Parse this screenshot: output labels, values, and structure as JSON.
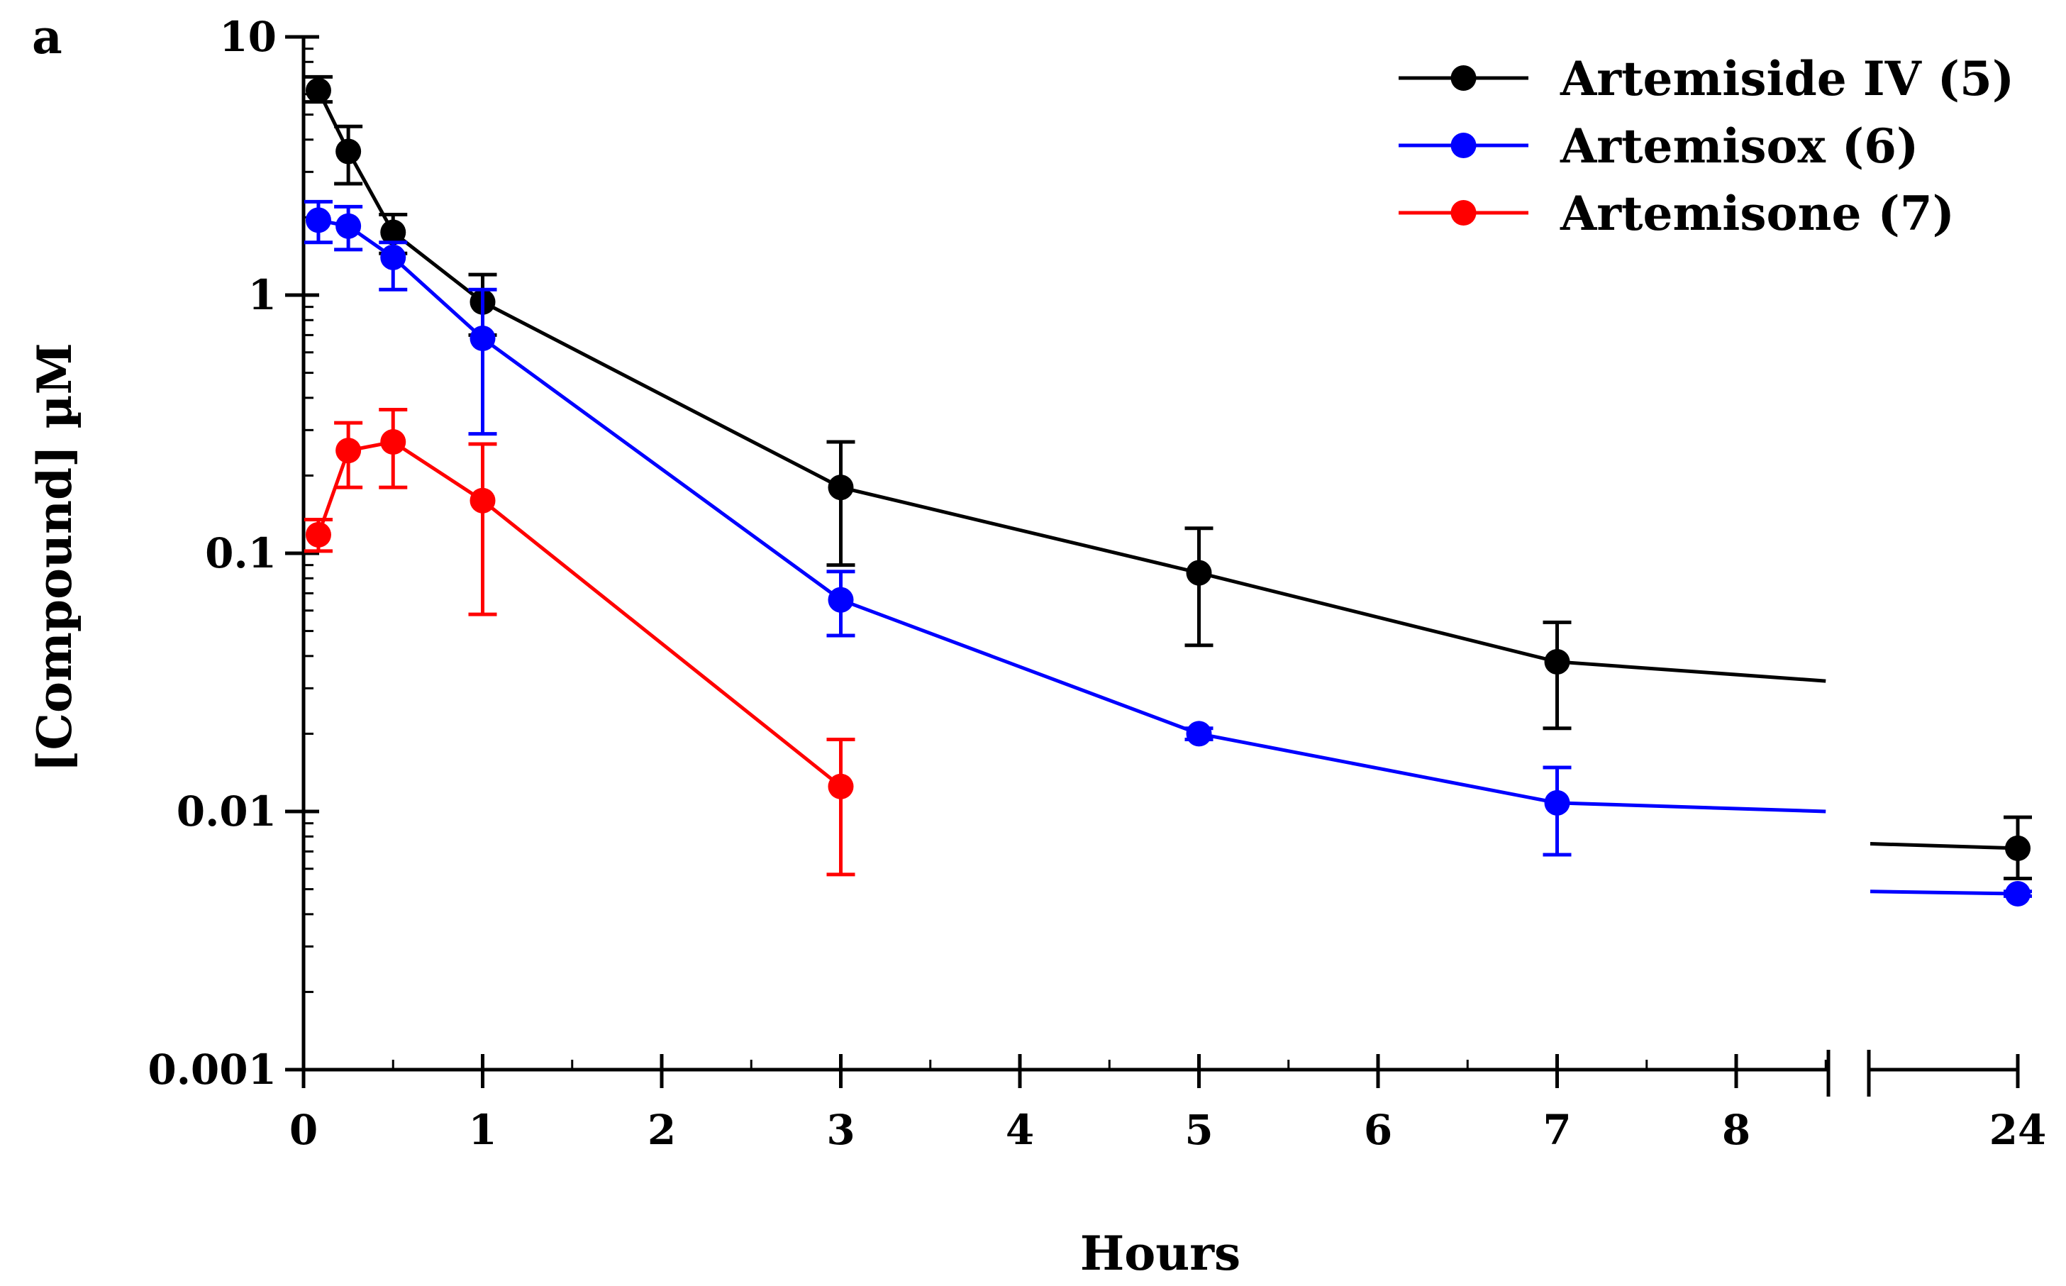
{
  "chart_data": {
    "type": "line",
    "panel_label": "a",
    "xlabel": "Hours",
    "ylabel": "[Compound] µM",
    "y_scale": "log",
    "ylim": [
      0.001,
      10
    ],
    "xlim": [
      0,
      24
    ],
    "axis_break": {
      "after": 8.5,
      "resume": 24
    },
    "x_ticks": [
      {
        "value": 0,
        "label": "0"
      },
      {
        "value": 1,
        "label": "1"
      },
      {
        "value": 2,
        "label": "2"
      },
      {
        "value": 3,
        "label": "3"
      },
      {
        "value": 4,
        "label": "4"
      },
      {
        "value": 5,
        "label": "5"
      },
      {
        "value": 6,
        "label": "6"
      },
      {
        "value": 7,
        "label": "7"
      },
      {
        "value": 8,
        "label": "8"
      },
      {
        "value": 24,
        "label": "24"
      }
    ],
    "y_ticks": [
      {
        "value": 10,
        "label": "10"
      },
      {
        "value": 1,
        "label": "1"
      },
      {
        "value": 0.1,
        "label": "0.1"
      },
      {
        "value": 0.01,
        "label": "0.01"
      },
      {
        "value": 0.001,
        "label": "0.001"
      }
    ],
    "legend_position": "top-right",
    "series": [
      {
        "name": "Artemiside IV (5)",
        "color": "#000000",
        "x": [
          0.083,
          0.25,
          0.5,
          1,
          3,
          5,
          7,
          24
        ],
        "y": [
          6.2,
          3.6,
          1.75,
          0.94,
          0.18,
          0.084,
          0.038,
          0.0072
        ],
        "err_upper": [
          7.0,
          4.5,
          2.05,
          1.2,
          0.27,
          0.125,
          0.054,
          0.0095
        ],
        "err_lower": [
          5.6,
          2.7,
          1.45,
          0.7,
          0.09,
          0.044,
          0.021,
          0.0055
        ],
        "segment_before_break": {
          "x_end": 8.5,
          "y_end": 0.032
        },
        "segment_after_break": {
          "y_start": 0.0075
        }
      },
      {
        "name": "Artemisox (6)",
        "color": "#0000ff",
        "x": [
          0.083,
          0.25,
          0.5,
          1,
          3,
          5,
          7,
          24
        ],
        "y": [
          1.95,
          1.85,
          1.4,
          0.68,
          0.066,
          0.02,
          0.0108,
          0.0048
        ],
        "err_upper": [
          2.3,
          2.2,
          1.6,
          1.05,
          0.085,
          0.021,
          0.0148,
          0.0049
        ],
        "err_lower": [
          1.6,
          1.5,
          1.05,
          0.29,
          0.048,
          0.019,
          0.0068,
          0.0047
        ],
        "segment_before_break": {
          "x_end": 8.5,
          "y_end": 0.01
        },
        "segment_after_break": {
          "y_start": 0.0049
        }
      },
      {
        "name": "Artemisone (7)",
        "color": "#ff0000",
        "x": [
          0.083,
          0.25,
          0.5,
          1,
          3
        ],
        "y": [
          0.118,
          0.25,
          0.27,
          0.16,
          0.0125
        ],
        "err_upper": [
          0.135,
          0.32,
          0.36,
          0.265,
          0.019
        ],
        "err_lower": [
          0.102,
          0.18,
          0.18,
          0.058,
          0.0057
        ]
      }
    ]
  }
}
